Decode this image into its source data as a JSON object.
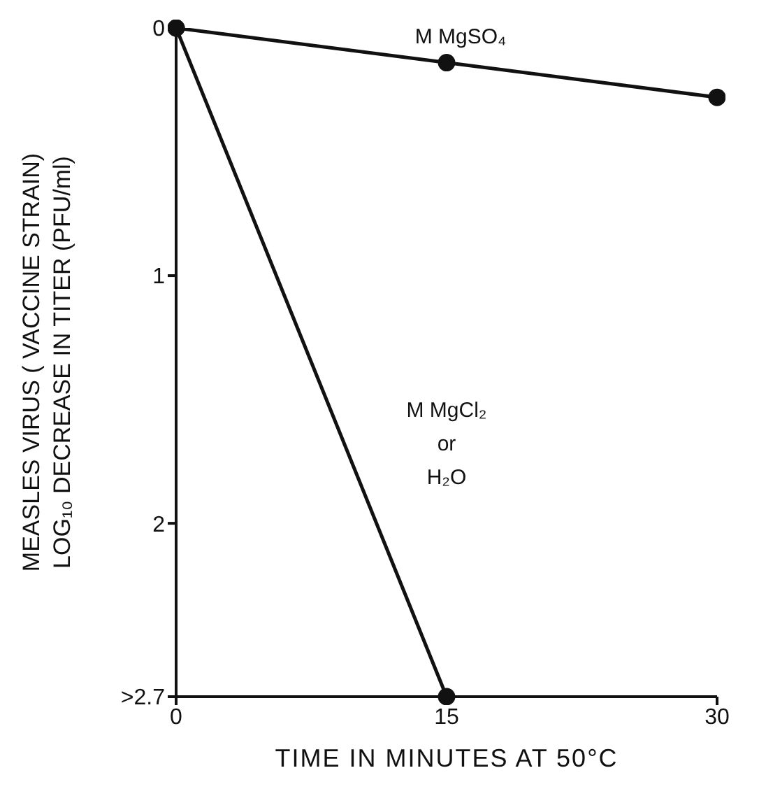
{
  "chart_data": {
    "type": "line",
    "xlabel": "TIME IN MINUTES AT 50°C",
    "ylabel": "MEASLES VIRUS ( VACCINE STRAIN)\nLOG₁₀ DECREASE IN TITER (PFU/ml)",
    "xlim": [
      0,
      30
    ],
    "xticks": [
      0,
      15,
      30
    ],
    "ylim": [
      2.7,
      0
    ],
    "yticks": [
      0,
      1,
      2,
      {
        "value": 2.7,
        "label": ">2.7"
      }
    ],
    "grid": false,
    "legend": false,
    "marker": "circle",
    "line_style": "solid",
    "series": [
      {
        "name": "M MgSO₄",
        "color": "#111111",
        "x": [
          0,
          15,
          30
        ],
        "values": [
          0,
          0.14,
          0.28
        ]
      },
      {
        "name": "M MgCl₂\nor\nH₂O",
        "color": "#111111",
        "x": [
          0,
          15
        ],
        "values": [
          0,
          2.7
        ]
      }
    ]
  }
}
